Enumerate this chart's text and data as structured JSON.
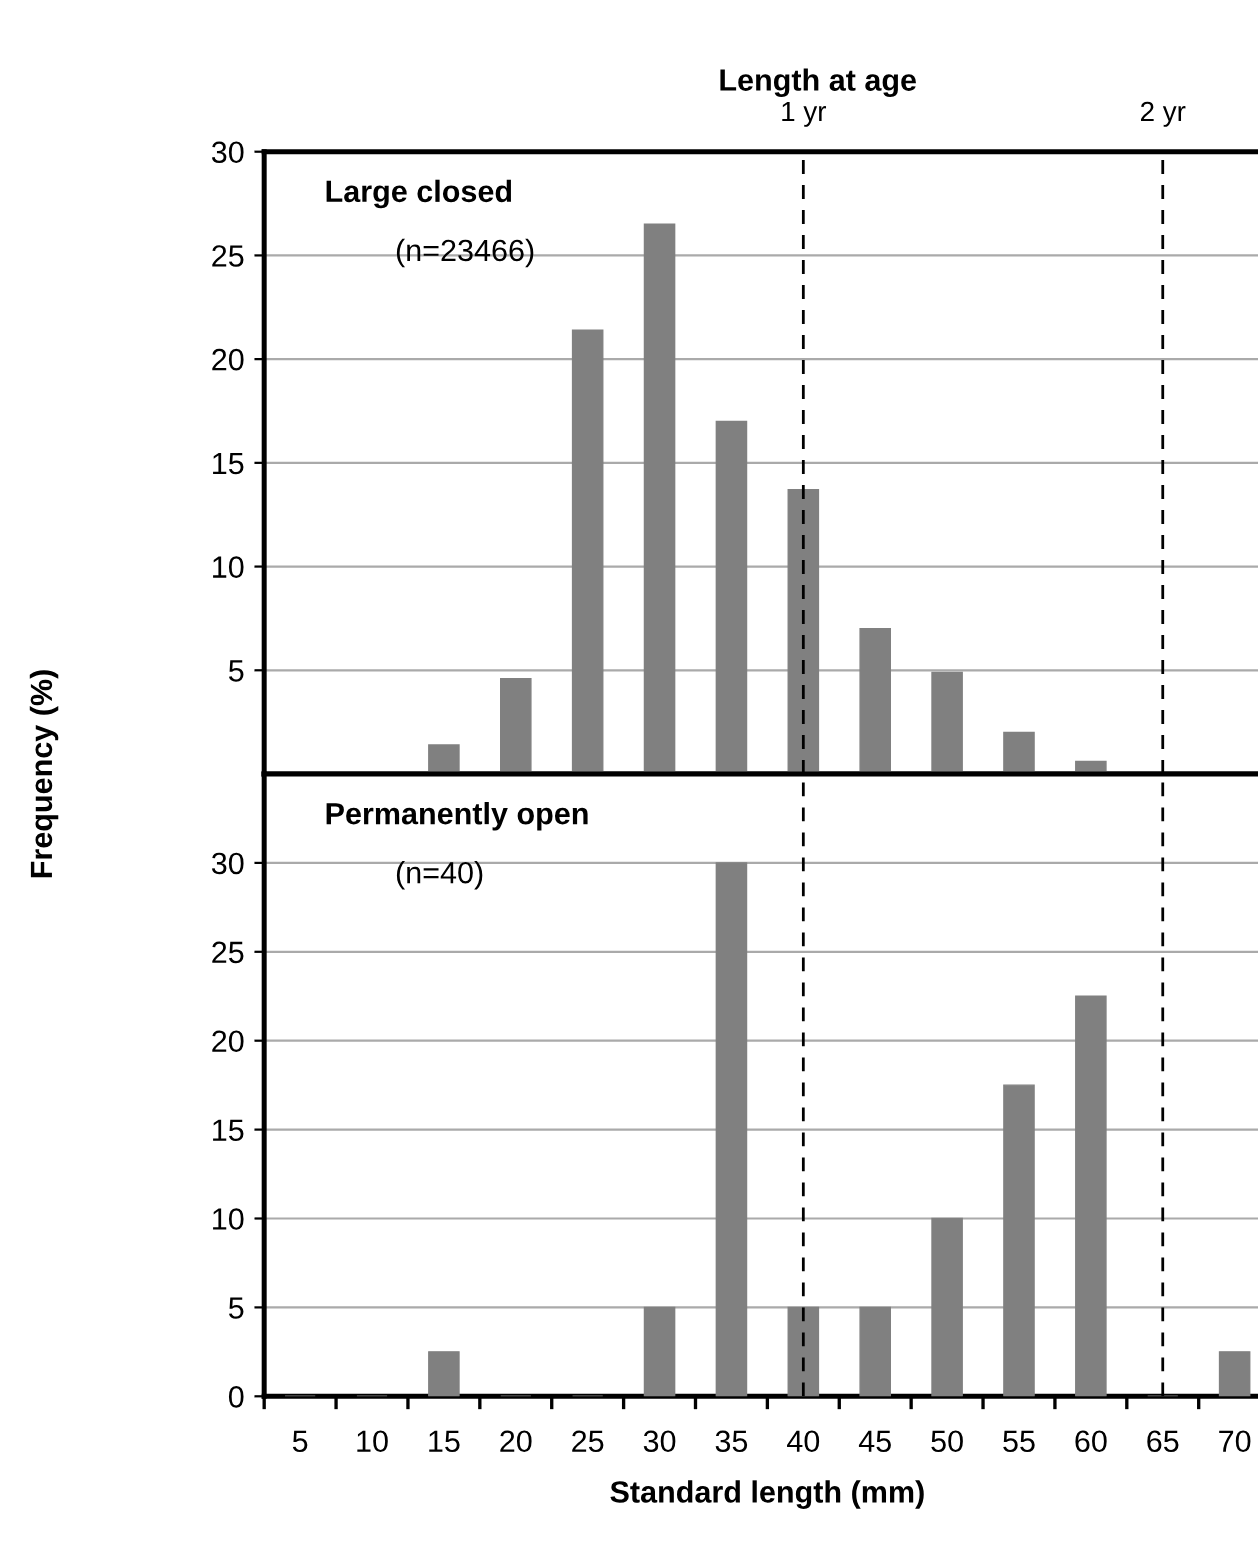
{
  "chart_data": [
    {
      "type": "bar",
      "title": "Length at age",
      "categories": [
        "5",
        "10",
        "15",
        "20",
        "25",
        "30",
        "35",
        "40",
        "45",
        "50",
        "55",
        "60",
        "65",
        "70"
      ],
      "values": [
        0,
        0,
        1.4,
        4.6,
        21.4,
        26.5,
        17.0,
        13.7,
        7.0,
        4.9,
        2.0,
        0.6,
        0,
        0
      ],
      "color": "#808080",
      "ylim": [
        0,
        30
      ],
      "yticks": [
        5,
        10,
        15,
        20,
        25,
        30
      ],
      "grid": "y",
      "tick_labels": "y",
      "ylabel": "Frequency (%)",
      "ref_lines": [
        {
          "axis": "x",
          "value": "40",
          "label": "1 yr",
          "line_style": "dashed"
        },
        {
          "axis": "x",
          "value": "65",
          "label": "2 yr",
          "line_style": "dashed"
        }
      ],
      "annotations": [
        "Large closed",
        "(n=23466)"
      ]
    },
    {
      "type": "bar",
      "categories": [
        "5",
        "10",
        "15",
        "20",
        "25",
        "30",
        "35",
        "40",
        "45",
        "50",
        "55",
        "60",
        "65",
        "70"
      ],
      "values": [
        0,
        0,
        2.5,
        0,
        0,
        5,
        30,
        5,
        5,
        10,
        17.5,
        22.5,
        0,
        2.5
      ],
      "color": "#808080",
      "ylim": [
        0,
        35
      ],
      "yticks": [
        0,
        5,
        10,
        15,
        20,
        25,
        30
      ],
      "grid": "y",
      "xlabel": "Standard length (mm)",
      "ref_lines": [
        {
          "axis": "x",
          "value": "40",
          "line_style": "dashed"
        },
        {
          "axis": "x",
          "value": "65",
          "line_style": "dashed"
        }
      ],
      "annotations": [
        "Permanently open",
        "(n=40)"
      ]
    }
  ]
}
